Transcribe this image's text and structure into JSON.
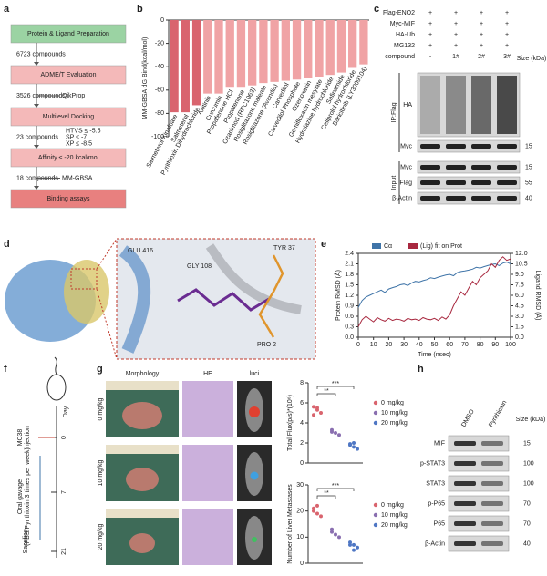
{
  "panel_labels": [
    "a",
    "b",
    "c",
    "d",
    "e",
    "f",
    "g",
    "h"
  ],
  "flowchart": {
    "steps": [
      "Protein & Ligand Preparation",
      "ADME/T Evaluation",
      "Multilevel Docking",
      "Affinity ≤ -20 kcal/mol",
      "Binding assays"
    ],
    "transitions": [
      {
        "count": "6723 compounds"
      },
      {
        "count": "3526 compounds",
        "method": "QikProp"
      },
      {
        "count": "23 compounds",
        "criteria": [
          "HTVS ≤ -5.5",
          "SP ≤ -7",
          "XP ≤ -8.5"
        ]
      },
      {
        "count": "18 compounds",
        "method": "MM-GBSA"
      }
    ]
  },
  "blot_c": {
    "conditions": [
      {
        "name": "Flag-ENO2",
        "lanes": [
          "+",
          "+",
          "+",
          "+"
        ]
      },
      {
        "name": "Myc-MIF",
        "lanes": [
          "+",
          "+",
          "+",
          "+"
        ]
      },
      {
        "name": "HA-Ub",
        "lanes": [
          "+",
          "+",
          "+",
          "+"
        ]
      },
      {
        "name": "MG132",
        "lanes": [
          "+",
          "+",
          "+",
          "+"
        ]
      },
      {
        "name": "compound",
        "lanes": [
          "-",
          "1#",
          "2#",
          "3#"
        ]
      }
    ],
    "size_header": "Size (kDa)",
    "groups": [
      {
        "name": "IP:Flag",
        "rows": [
          {
            "name": "HA"
          },
          {
            "name": "Myc",
            "size": "15"
          }
        ]
      },
      {
        "name": "Input",
        "rows": [
          {
            "name": "Myc",
            "size": "15"
          },
          {
            "name": "Flag",
            "size": "55"
          },
          {
            "name": "β-Actin",
            "size": "40"
          }
        ]
      }
    ]
  },
  "structure_d": {
    "residues": [
      "GLU 416",
      "GLY 108",
      "TYR 37",
      "PRO 2"
    ]
  },
  "timeline_f": {
    "axis_label": "Day",
    "days": [
      "0",
      "7",
      "21"
    ],
    "events": [
      {
        "lines": [
          "MC38",
          "injection"
        ]
      },
      {
        "lines": [
          "Oral gavage",
          "(PBS/Pyrithioxin,3 times per week)"
        ]
      },
      {
        "lines": [
          "Sacrifice"
        ]
      }
    ]
  },
  "panel_g": {
    "columns": [
      "Morphology",
      "HE",
      "luci"
    ],
    "rows": [
      "0 mg/kg",
      "10 mg/kg",
      "20 mg/kg"
    ]
  },
  "blot_h": {
    "columns": [
      "DMSO",
      "Pyrithioxin"
    ],
    "size_header": "Size (kDa)",
    "rows": [
      {
        "name": "MIF",
        "size": "15"
      },
      {
        "name": "p-STAT3",
        "size": "100"
      },
      {
        "name": "STAT3",
        "size": "100"
      },
      {
        "name": "p-P65",
        "size": "70"
      },
      {
        "name": "P65",
        "size": "70"
      },
      {
        "name": "β-Actin",
        "size": "40"
      }
    ]
  },
  "chart_data": [
    {
      "type": "bar",
      "ylabel": "MM-GBSA dG Bind(kcal/mol)",
      "categories": [
        "Salmeterol Xinafoate",
        "Salmeterol",
        "Pyrithioxin Dihydrochloride",
        "Axitinib",
        "Curcumin",
        "Propafenone HCl",
        "Propafenone",
        "Ozanimod (RPC1063)",
        "Rosiglitazone maleate",
        "Rosiglitazone (Avandia)",
        "Carvedilol",
        "Carvedilol Phosphate",
        "Ozenoxacin",
        "Gemifloxacin mesylate",
        "Hydralazine hydrochloride",
        "Safinamide",
        "Celiprolol hydrochloride",
        "Baricitinib (LY3009104)"
      ],
      "values": [
        -79,
        -79,
        -73,
        -63,
        -63,
        -58,
        -58,
        -56,
        -54,
        -53,
        -52,
        -51,
        -50,
        -49,
        -47,
        -45,
        -41,
        -38
      ],
      "colors": [
        "#d9646e",
        "#d9646e",
        "#d9646e",
        "#f0a3a5",
        "#f0a3a5",
        "#f0a3a5",
        "#f0a3a5",
        "#f0a3a5",
        "#f0a3a5",
        "#f0a3a5",
        "#f0a3a5",
        "#f0a3a5",
        "#f0a3a5",
        "#f0a3a5",
        "#f0a3a5",
        "#f0a3a5",
        "#f0a3a5",
        "#f0a3a5"
      ],
      "label_colors": [
        "#c0392b",
        "#c0392b",
        "#c0392b",
        "#222",
        "#222",
        "#222",
        "#222",
        "#222",
        "#222",
        "#222",
        "#222",
        "#222",
        "#222",
        "#222",
        "#222",
        "#222",
        "#222",
        "#222"
      ],
      "ylim": [
        -100,
        0
      ],
      "yticks": [
        -100,
        -80,
        -60,
        -40,
        -20,
        0
      ]
    },
    {
      "type": "line",
      "xlabel": "Time (nsec)",
      "ylabel": "Protein RMSD (Å)",
      "y2label": "Ligand RMSD (Å)",
      "x": [
        0,
        2.5,
        5,
        7.5,
        10,
        12.5,
        15,
        17.5,
        20,
        22.5,
        25,
        27.5,
        30,
        32.5,
        35,
        37.5,
        40,
        42.5,
        45,
        47.5,
        50,
        52.5,
        55,
        57.5,
        60,
        62.5,
        65,
        67.5,
        70,
        72.5,
        75,
        77.5,
        80,
        82.5,
        85,
        87.5,
        90,
        92.5,
        95,
        97.5,
        100
      ],
      "series": [
        {
          "name": "Cα",
          "color": "#3f74a8",
          "values": [
            0.85,
            1.05,
            1.15,
            1.2,
            1.25,
            1.3,
            1.35,
            1.28,
            1.38,
            1.42,
            1.45,
            1.5,
            1.52,
            1.48,
            1.55,
            1.6,
            1.58,
            1.62,
            1.65,
            1.7,
            1.68,
            1.72,
            1.75,
            1.78,
            1.8,
            1.76,
            1.85,
            1.88,
            1.9,
            1.92,
            1.95,
            2.0,
            1.98,
            2.02,
            2.05,
            2.08,
            2.1,
            2.05,
            2.12,
            2.15,
            2.1
          ]
        },
        {
          "name": "(Lig) fit on Prot",
          "color": "#a8283f",
          "axis": "y2",
          "values": [
            1.5,
            2.5,
            3.0,
            2.6,
            2.2,
            2.8,
            2.5,
            2.3,
            2.7,
            2.4,
            2.6,
            2.5,
            2.3,
            2.7,
            2.5,
            2.6,
            2.4,
            2.8,
            2.6,
            2.5,
            2.7,
            2.4,
            2.9,
            2.6,
            3.2,
            4.5,
            5.5,
            6.5,
            6.0,
            7.0,
            8.0,
            7.5,
            8.5,
            9.0,
            9.5,
            10.5,
            10.0,
            11.0,
            11.5,
            11.0,
            11.2
          ]
        }
      ],
      "xlim": [
        0,
        100
      ],
      "xticks": [
        0,
        10,
        20,
        30,
        40,
        50,
        60,
        70,
        80,
        90,
        100
      ],
      "ylim": [
        0,
        2.4
      ],
      "yticks": [
        {
          "value": 0,
          "label": "0.0"
        },
        0.3,
        0.6,
        0.9,
        1.2,
        1.5,
        1.8,
        2.1,
        2.4
      ],
      "y2lim": [
        0,
        12
      ],
      "y2ticks": [
        {
          "value": 0,
          "label": "0.0"
        },
        1.5,
        {
          "value": 3,
          "label": "3.0"
        },
        4.5,
        {
          "value": 6,
          "label": "6.0"
        },
        7.5,
        {
          "value": 9,
          "label": "9.0"
        },
        10.5,
        {
          "value": 12,
          "label": "12.0"
        }
      ]
    },
    {
      "type": "strip",
      "ylabel": "Total Flux(p/s)*(10⁶)",
      "series": [
        {
          "name": "0 mg/kg",
          "color": "#d9646e",
          "values": [
            5.6,
            5.3,
            5.0,
            4.8,
            5.5
          ]
        },
        {
          "name": "10 mg/kg",
          "color": "#8a6fb0",
          "values": [
            3.3,
            3.0,
            2.8,
            3.1
          ]
        },
        {
          "name": "20 mg/kg",
          "color": "#4f77c4",
          "values": [
            1.9,
            1.6,
            1.4,
            1.8,
            2.0
          ]
        }
      ],
      "ylim": [
        0,
        8
      ],
      "yticks": [
        0,
        2,
        4,
        6,
        8
      ],
      "annotations": [
        "**",
        "***"
      ]
    },
    {
      "type": "strip",
      "ylabel": "Number of Liver Metastases",
      "series": [
        {
          "name": "0 mg/kg",
          "color": "#d9646e",
          "values": [
            21,
            19,
            18,
            20,
            22
          ]
        },
        {
          "name": "10 mg/kg",
          "color": "#8a6fb0",
          "values": [
            13,
            11,
            10,
            12
          ]
        },
        {
          "name": "20 mg/kg",
          "color": "#4f77c4",
          "values": [
            8,
            7,
            6,
            7,
            5
          ]
        }
      ],
      "ylim": [
        0,
        30
      ],
      "yticks": [
        0,
        10,
        20,
        30
      ],
      "annotations": [
        "**",
        "***"
      ]
    }
  ]
}
